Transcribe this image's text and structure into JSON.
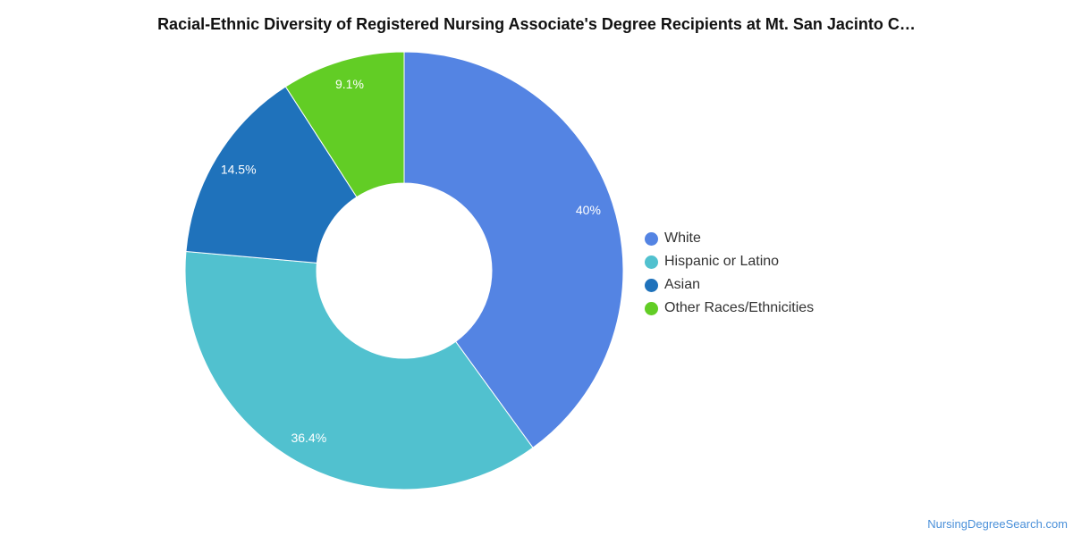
{
  "chart_data": {
    "type": "pie",
    "variant": "donut",
    "title": "Racial-Ethnic Diversity of Registered Nursing Associate's Degree Recipients at Mt. San Jacinto C…",
    "slices": [
      {
        "name": "White",
        "value": 40.0,
        "label": "40%",
        "color": "#5484e3"
      },
      {
        "name": "Hispanic or Latino",
        "value": 36.4,
        "label": "36.4%",
        "color": "#51c1cf"
      },
      {
        "name": "Asian",
        "value": 14.5,
        "label": "14.5%",
        "color": "#1f72bb"
      },
      {
        "name": "Other Races/Ethnicities",
        "value": 9.1,
        "label": "9.1%",
        "color": "#62cd25"
      }
    ],
    "legend_position": "right"
  },
  "source": "NursingDegreeSearch.com"
}
